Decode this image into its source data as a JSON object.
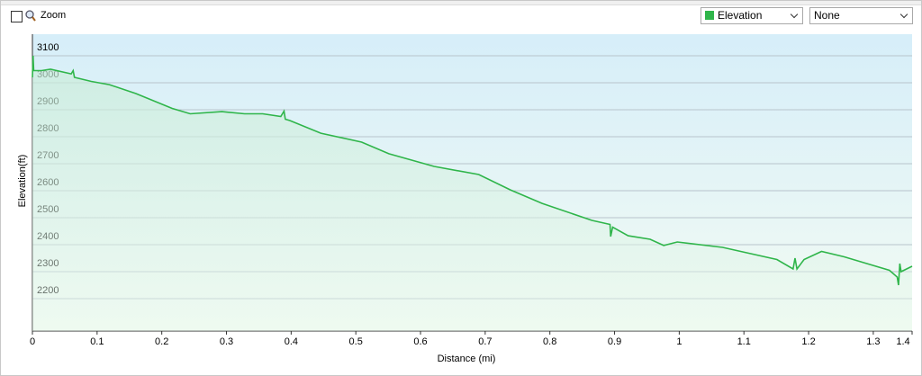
{
  "toolbar": {
    "zoom_label": "Zoom",
    "second_select": "None"
  },
  "chart_data": {
    "type": "line",
    "x_label": "Distance  (mi)",
    "y_label": "Elevation(ft)",
    "x": [
      0,
      0.001,
      0.002,
      0.014,
      0.028,
      0.06,
      0.063,
      0.065,
      0.091,
      0.119,
      0.16,
      0.216,
      0.244,
      0.293,
      0.328,
      0.356,
      0.384,
      0.389,
      0.391,
      0.398,
      0.446,
      0.509,
      0.551,
      0.621,
      0.69,
      0.739,
      0.788,
      0.865,
      0.893,
      0.894,
      0.897,
      0.921,
      0.955,
      0.976,
      0.997,
      1.067,
      1.151,
      1.176,
      1.179,
      1.182,
      1.193,
      1.22,
      1.255,
      1.29,
      1.325,
      1.337,
      1.339,
      1.341,
      1.343,
      1.36
    ],
    "series": [
      {
        "name": "Elevation",
        "color": "#2fb54a",
        "values": [
          3020,
          3100,
          3045,
          3045,
          3050,
          3033,
          3045,
          3020,
          3005,
          2993,
          2960,
          2905,
          2885,
          2893,
          2885,
          2885,
          2875,
          2895,
          2865,
          2860,
          2813,
          2780,
          2737,
          2690,
          2660,
          2603,
          2553,
          2490,
          2475,
          2430,
          2465,
          2433,
          2420,
          2397,
          2410,
          2390,
          2345,
          2310,
          2350,
          2310,
          2345,
          2375,
          2355,
          2330,
          2305,
          2280,
          2250,
          2330,
          2300,
          2320
        ]
      }
    ],
    "xlim": [
      0,
      1.36
    ],
    "ylim": [
      2080,
      3180
    ],
    "xticks": [
      0,
      0.1,
      0.2,
      0.3,
      0.4,
      0.5,
      0.6,
      0.7,
      0.8,
      0.9,
      1,
      1.1,
      1.2,
      1.3,
      {
        "value": 1.36,
        "label": "1.4"
      }
    ],
    "yticks": [
      2200,
      2300,
      2400,
      2500,
      2600,
      2700,
      2800,
      2900,
      3000,
      3100
    ],
    "grid": true
  }
}
